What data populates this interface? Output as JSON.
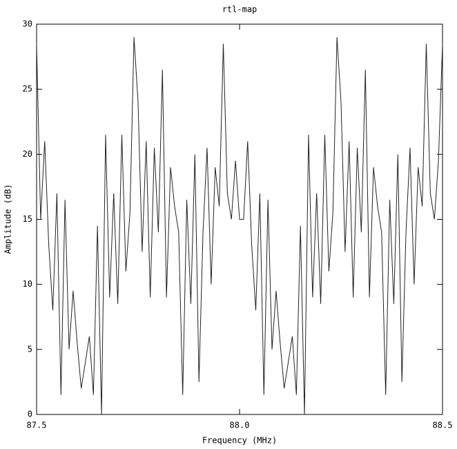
{
  "chart_data": {
    "type": "line",
    "title": "rtl-map",
    "x_label": "Frequency (MHz)",
    "y_label": "Amplitude (dB)",
    "x": [
      87.5,
      87.51,
      87.52,
      87.53,
      87.54,
      87.55,
      87.56,
      87.57,
      87.58,
      87.59,
      87.6,
      87.61,
      87.62,
      87.63,
      87.64,
      87.65,
      87.66,
      87.67,
      87.68,
      87.69,
      87.7,
      87.71,
      87.72,
      87.73,
      87.74,
      87.75,
      87.76,
      87.77,
      87.78,
      87.79,
      87.8,
      87.81,
      87.82,
      87.83,
      87.84,
      87.85,
      87.86,
      87.87,
      87.88,
      87.89,
      87.9,
      87.91,
      87.92,
      87.93,
      87.94,
      87.95,
      87.96,
      87.97,
      87.98,
      87.99,
      88.0,
      88.01,
      88.02,
      88.03,
      88.04,
      88.05,
      88.06,
      88.07,
      88.08,
      88.09,
      88.1,
      88.11,
      88.12,
      88.13,
      88.14,
      88.15,
      88.16,
      88.17,
      88.18,
      88.19,
      88.2,
      88.21,
      88.22,
      88.23,
      88.24,
      88.25,
      88.26,
      88.27,
      88.28,
      88.29,
      88.3,
      88.31,
      88.32,
      88.33,
      88.34,
      88.35,
      88.36,
      88.37,
      88.38,
      88.39,
      88.4,
      88.41,
      88.42,
      88.43,
      88.44,
      88.45,
      88.46,
      88.47,
      88.48,
      88.49,
      88.5
    ],
    "series": [
      {
        "color": "#222222",
        "values": [
          28.5,
          15,
          21,
          13,
          8,
          17,
          1.5,
          16.5,
          5,
          9.5,
          5.5,
          2,
          4,
          6,
          1.5,
          14.5,
          0,
          21.5,
          9,
          17,
          8.5,
          21.5,
          11,
          15.5,
          29,
          24,
          12.5,
          21,
          9,
          20.5,
          14,
          26.5,
          9,
          19,
          16,
          14,
          1.5,
          16.5,
          8.5,
          20,
          2.5,
          14,
          20.5,
          10,
          19,
          16,
          28.5,
          17,
          15,
          19.5,
          15,
          15,
          21,
          13,
          8,
          17,
          1.5,
          16.5,
          5,
          9.5,
          5.5,
          2,
          4,
          6,
          1.5,
          14.5,
          0,
          21.5,
          9,
          17,
          8.5,
          21.5,
          11,
          15.5,
          29,
          24,
          12.5,
          21,
          9,
          20.5,
          14,
          26.5,
          9,
          19,
          16,
          14,
          1.5,
          16.5,
          8.5,
          20,
          2.5,
          14,
          20.5,
          10,
          19,
          16,
          28.5,
          17,
          15,
          19.5,
          28.5
        ]
      }
    ],
    "xlim": [
      87.5,
      88.5
    ],
    "xticks": [
      87.5,
      {
        "value": 88,
        "label": "88.0"
      },
      88.5
    ],
    "ylim": [
      0,
      30
    ],
    "yticks": [
      0,
      5,
      10,
      15,
      20,
      25,
      30
    ],
    "grid": false
  }
}
